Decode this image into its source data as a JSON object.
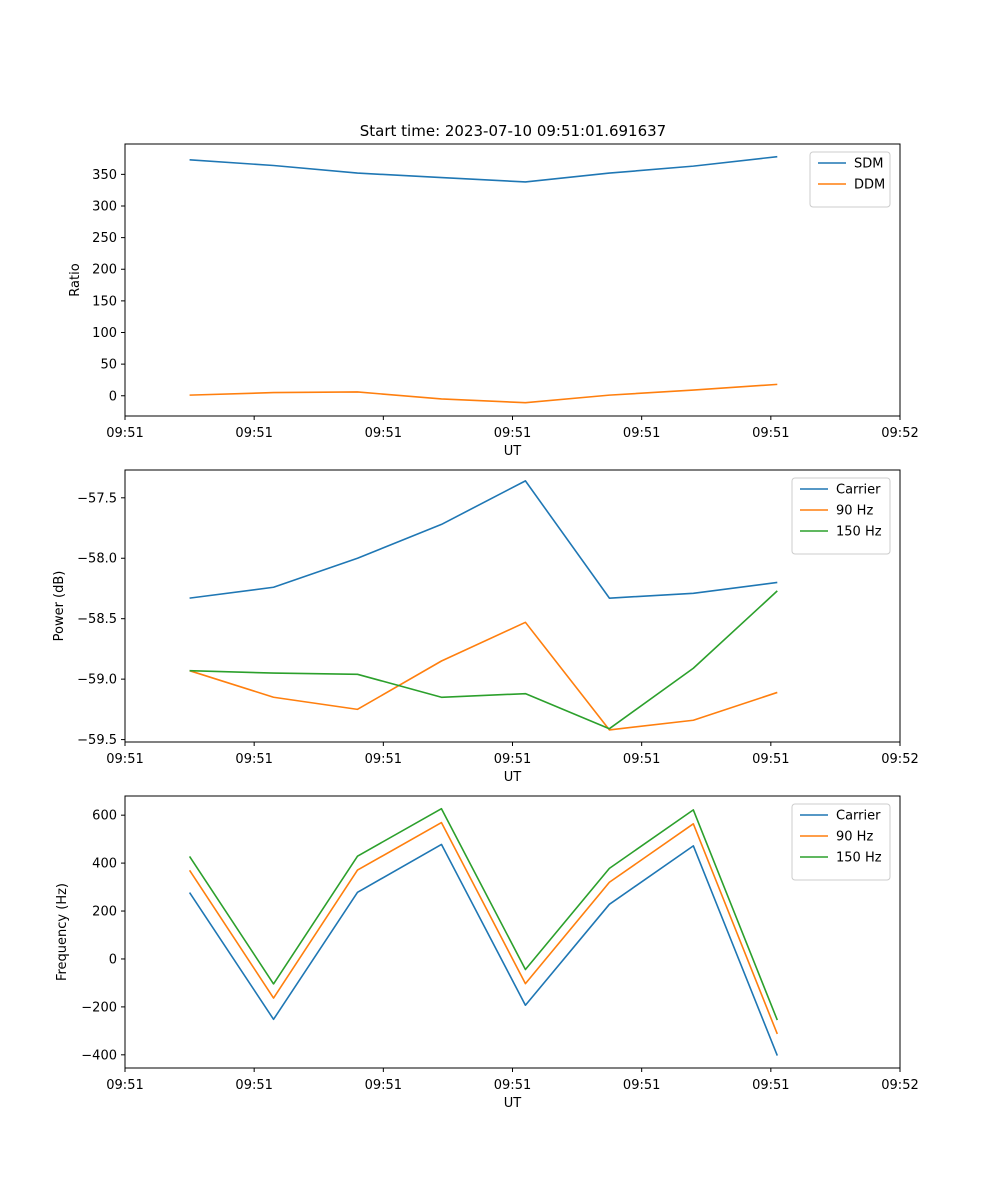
{
  "figure": {
    "title": "Start time: 2023-07-10 09:51:01.691637"
  },
  "chart_data": [
    {
      "type": "line",
      "id": "ratio",
      "xlabel": "UT",
      "ylabel": "Ratio",
      "xlim": [
        0,
        12
      ],
      "ylim": [
        -32,
        398
      ],
      "x_ticks": [
        0,
        2,
        4,
        6,
        8,
        10,
        12
      ],
      "x_tick_labels": [
        "09:51",
        "09:51",
        "09:51",
        "09:51",
        "09:51",
        "09:51",
        "09:52"
      ],
      "y_ticks": [
        0,
        50,
        100,
        150,
        200,
        250,
        300,
        350
      ],
      "y_tick_labels": [
        "0",
        "50",
        "100",
        "150",
        "200",
        "250",
        "300",
        "350"
      ],
      "legend_position": "top-right",
      "x": [
        1,
        2.3,
        3.6,
        4.9,
        6.2,
        7.5,
        8.8,
        10.1
      ],
      "series": [
        {
          "name": "SDM",
          "color": "#1f77b4",
          "values": [
            373,
            364,
            352,
            345,
            338,
            352,
            363,
            378
          ]
        },
        {
          "name": "DDM",
          "color": "#ff7f0e",
          "values": [
            1,
            5,
            6,
            -5,
            -11,
            1,
            9,
            18
          ]
        }
      ]
    },
    {
      "type": "line",
      "id": "power",
      "xlabel": "UT",
      "ylabel": "Power (dB)",
      "xlim": [
        0,
        12
      ],
      "ylim": [
        -59.52,
        -57.27
      ],
      "x_ticks": [
        0,
        2,
        4,
        6,
        8,
        10,
        12
      ],
      "x_tick_labels": [
        "09:51",
        "09:51",
        "09:51",
        "09:51",
        "09:51",
        "09:51",
        "09:52"
      ],
      "y_ticks": [
        -59.5,
        -59.0,
        -58.5,
        -58.0,
        -57.5
      ],
      "y_tick_labels": [
        "−59.5",
        "−59.0",
        "−58.5",
        "−58.0",
        "−57.5"
      ],
      "legend_position": "top-right",
      "x": [
        1,
        2.3,
        3.6,
        4.9,
        6.2,
        7.5,
        8.8,
        10.1
      ],
      "series": [
        {
          "name": "Carrier",
          "color": "#1f77b4",
          "values": [
            -58.33,
            -58.24,
            -58.0,
            -57.72,
            -57.36,
            -58.33,
            -58.29,
            -58.2
          ]
        },
        {
          "name": "90 Hz",
          "color": "#ff7f0e",
          "values": [
            -58.93,
            -59.15,
            -59.25,
            -58.85,
            -58.53,
            -59.42,
            -59.34,
            -59.11
          ]
        },
        {
          "name": "150 Hz",
          "color": "#2ca02c",
          "values": [
            -58.93,
            -58.95,
            -58.96,
            -59.15,
            -59.12,
            -59.41,
            -58.91,
            -58.27
          ]
        }
      ]
    },
    {
      "type": "line",
      "id": "frequency",
      "xlabel": "UT",
      "ylabel": "Frequency (Hz)",
      "xlim": [
        0,
        12
      ],
      "ylim": [
        -455,
        680
      ],
      "x_ticks": [
        0,
        2,
        4,
        6,
        8,
        10,
        12
      ],
      "x_tick_labels": [
        "09:51",
        "09:51",
        "09:51",
        "09:51",
        "09:51",
        "09:51",
        "09:52"
      ],
      "y_ticks": [
        -400,
        -200,
        0,
        200,
        400,
        600
      ],
      "y_tick_labels": [
        "−400",
        "−200",
        "0",
        "200",
        "400",
        "600"
      ],
      "legend_position": "top-right",
      "x": [
        1,
        2.3,
        3.6,
        4.9,
        6.2,
        7.5,
        8.8,
        10.1
      ],
      "series": [
        {
          "name": "Carrier",
          "color": "#1f77b4",
          "values": [
            277,
            -252,
            278,
            478,
            -193,
            228,
            472,
            -403
          ]
        },
        {
          "name": "90 Hz",
          "color": "#ff7f0e",
          "values": [
            370,
            -163,
            371,
            569,
            -103,
            320,
            564,
            -313
          ]
        },
        {
          "name": "150 Hz",
          "color": "#2ca02c",
          "values": [
            428,
            -104,
            429,
            627,
            -44,
            378,
            622,
            -255
          ]
        }
      ]
    }
  ]
}
